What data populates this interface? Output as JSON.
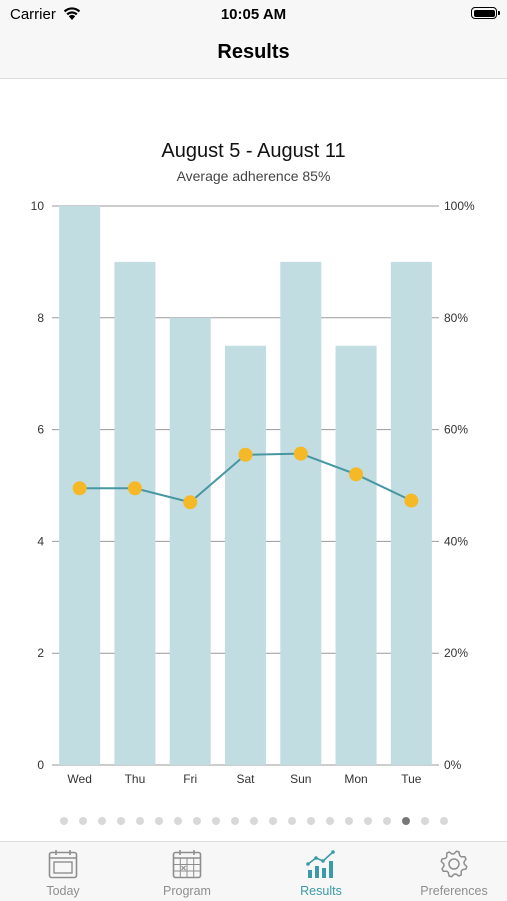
{
  "status_bar": {
    "carrier": "Carrier",
    "time": "10:05 AM"
  },
  "header": {
    "title": "Results"
  },
  "chart_title": "August 5 - August 11",
  "chart_subtitle": "Average adherence 85%",
  "chart_data": {
    "type": "bar",
    "categories": [
      "Wed",
      "Thu",
      "Fri",
      "Sat",
      "Sun",
      "Mon",
      "Tue"
    ],
    "series": [
      {
        "type": "bar",
        "axis": "left",
        "values": [
          10,
          9,
          8,
          7.5,
          9,
          7.5,
          9
        ]
      },
      {
        "type": "line",
        "axis": "left",
        "values": [
          4.95,
          4.95,
          4.7,
          5.55,
          5.57,
          5.2,
          4.73
        ]
      }
    ],
    "left_axis": {
      "ylim": [
        0,
        10
      ],
      "ticks": [
        "0",
        "2",
        "4",
        "6",
        "8",
        "10"
      ]
    },
    "right_axis": {
      "ylim": [
        0,
        100
      ],
      "ticks": [
        "0%",
        "20%",
        "40%",
        "60%",
        "80%",
        "100%"
      ]
    },
    "grid": true,
    "colors": {
      "bar": "#c2dde2",
      "line": "#4797a3",
      "point": "#f5b927",
      "grid": "#9a9a9a"
    }
  },
  "pager": {
    "count": 21,
    "active_index": 18
  },
  "tabs": [
    {
      "label": "Today",
      "icon": "calendar-day-icon",
      "active": false
    },
    {
      "label": "Program",
      "icon": "calendar-grid-icon",
      "active": false
    },
    {
      "label": "Results",
      "icon": "chart-icon",
      "active": true
    },
    {
      "label": "Preferences",
      "icon": "gear-icon",
      "active": false
    }
  ],
  "colors": {
    "accent": "#3a9aa6",
    "inactive": "#8e8e8e"
  }
}
